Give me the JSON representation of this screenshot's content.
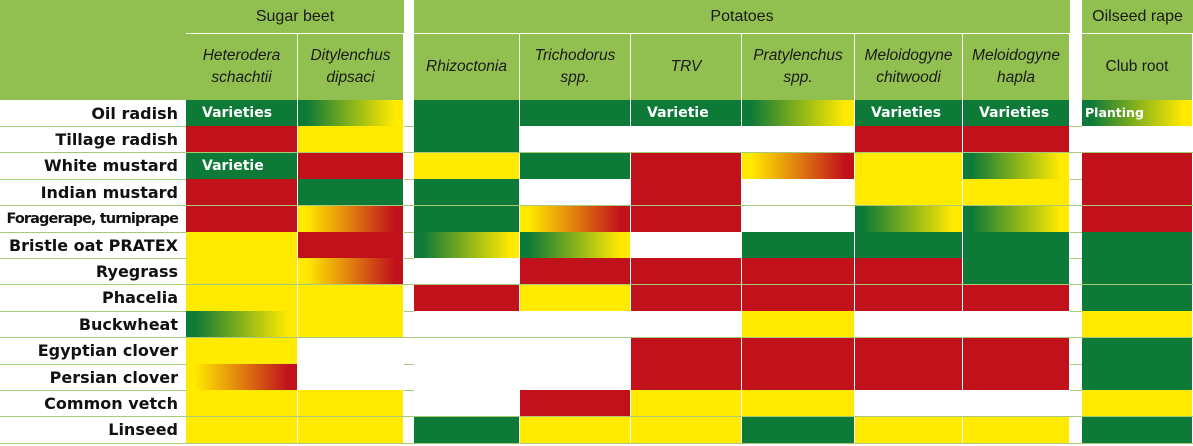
{
  "colors": {
    "header_bg": "#92c050",
    "green": "#0e7a37",
    "yellow": "#ffea00",
    "red": "#c1121c",
    "white": "#ffffff",
    "gridline": "#a8c87a"
  },
  "chart_data": {
    "type": "table",
    "groups": [
      {
        "label": "Sugar beet",
        "columns": [
          0,
          1
        ]
      },
      {
        "label": "Potatoes",
        "columns": [
          2,
          3,
          4,
          5,
          6,
          7
        ]
      },
      {
        "label": "Oilseed rape",
        "columns": [
          8
        ]
      }
    ],
    "columns": [
      {
        "line1": "Heterodera",
        "line2": "schachtii",
        "italic": true
      },
      {
        "line1": "Ditylenchus",
        "line2": "dipsaci",
        "italic": true
      },
      {
        "line1": "Rhizoctonia",
        "line2": "",
        "italic": true
      },
      {
        "line1": "Trichodorus",
        "line2": "spp.",
        "italic": true
      },
      {
        "line1": "TRV",
        "line2": "",
        "italic": true
      },
      {
        "line1": "Pratylenchus",
        "line2": "spp.",
        "italic": true
      },
      {
        "line1": "Meloidogyne",
        "line2": "chitwoodi",
        "italic": true
      },
      {
        "line1": "Meloidogyne",
        "line2": "hapla",
        "italic": true
      },
      {
        "line1": "Club root",
        "line2": "",
        "italic": false
      }
    ],
    "rows": [
      {
        "label": "Oil radish",
        "cells": [
          "G",
          "GY",
          "G",
          "G",
          "G",
          "GY",
          "G",
          "G",
          "GY"
        ],
        "notes": {
          "0": "Varieties",
          "4": "Varietie",
          "6": "Varieties",
          "7": "Varieties",
          "8": "Planting"
        }
      },
      {
        "label": "Tillage radish",
        "cells": [
          "R",
          "Y",
          "G",
          "W",
          "W",
          "W",
          "R",
          "R",
          "W"
        ]
      },
      {
        "label": "White mustard",
        "cells": [
          "G",
          "R",
          "Y",
          "G",
          "R",
          "YR",
          "Y",
          "GY",
          "R"
        ],
        "notes": {
          "0": "Varietie"
        }
      },
      {
        "label": "Indian mustard",
        "cells": [
          "R",
          "G",
          "G",
          "W",
          "R",
          "W",
          "Y",
          "Y",
          "R"
        ]
      },
      {
        "label": "Foragerape, turniprape",
        "cells": [
          "R",
          "YR",
          "G",
          "YR",
          "R",
          "W",
          "GY",
          "GY",
          "R"
        ]
      },
      {
        "label": "Bristle oat PRATEX",
        "cells": [
          "Y",
          "R",
          "GY",
          "GY",
          "W",
          "G",
          "G",
          "G",
          "G"
        ]
      },
      {
        "label": "Ryegrass",
        "cells": [
          "Y",
          "YR",
          "W",
          "R",
          "R",
          "R",
          "R",
          "G",
          "G"
        ]
      },
      {
        "label": "Phacelia",
        "cells": [
          "Y",
          "Y",
          "R",
          "Y",
          "R",
          "R",
          "R",
          "R",
          "G"
        ]
      },
      {
        "label": "Buckwheat",
        "cells": [
          "GY",
          "Y",
          "W",
          "W",
          "W",
          "Y",
          "W",
          "W",
          "Y"
        ]
      },
      {
        "label": "Egyptian clover",
        "cells": [
          "Y",
          "W",
          "W",
          "W",
          "R",
          "R",
          "R",
          "R",
          "G"
        ]
      },
      {
        "label": "Persian clover",
        "cells": [
          "YR",
          "W",
          "W",
          "W",
          "R",
          "R",
          "R",
          "R",
          "G"
        ]
      },
      {
        "label": "Common vetch",
        "cells": [
          "Y",
          "Y",
          "W",
          "R",
          "Y",
          "Y",
          "W",
          "W",
          "Y"
        ]
      },
      {
        "label": "Linseed",
        "cells": [
          "Y",
          "Y",
          "G",
          "Y",
          "Y",
          "G",
          "Y",
          "Y",
          "G"
        ]
      }
    ]
  }
}
